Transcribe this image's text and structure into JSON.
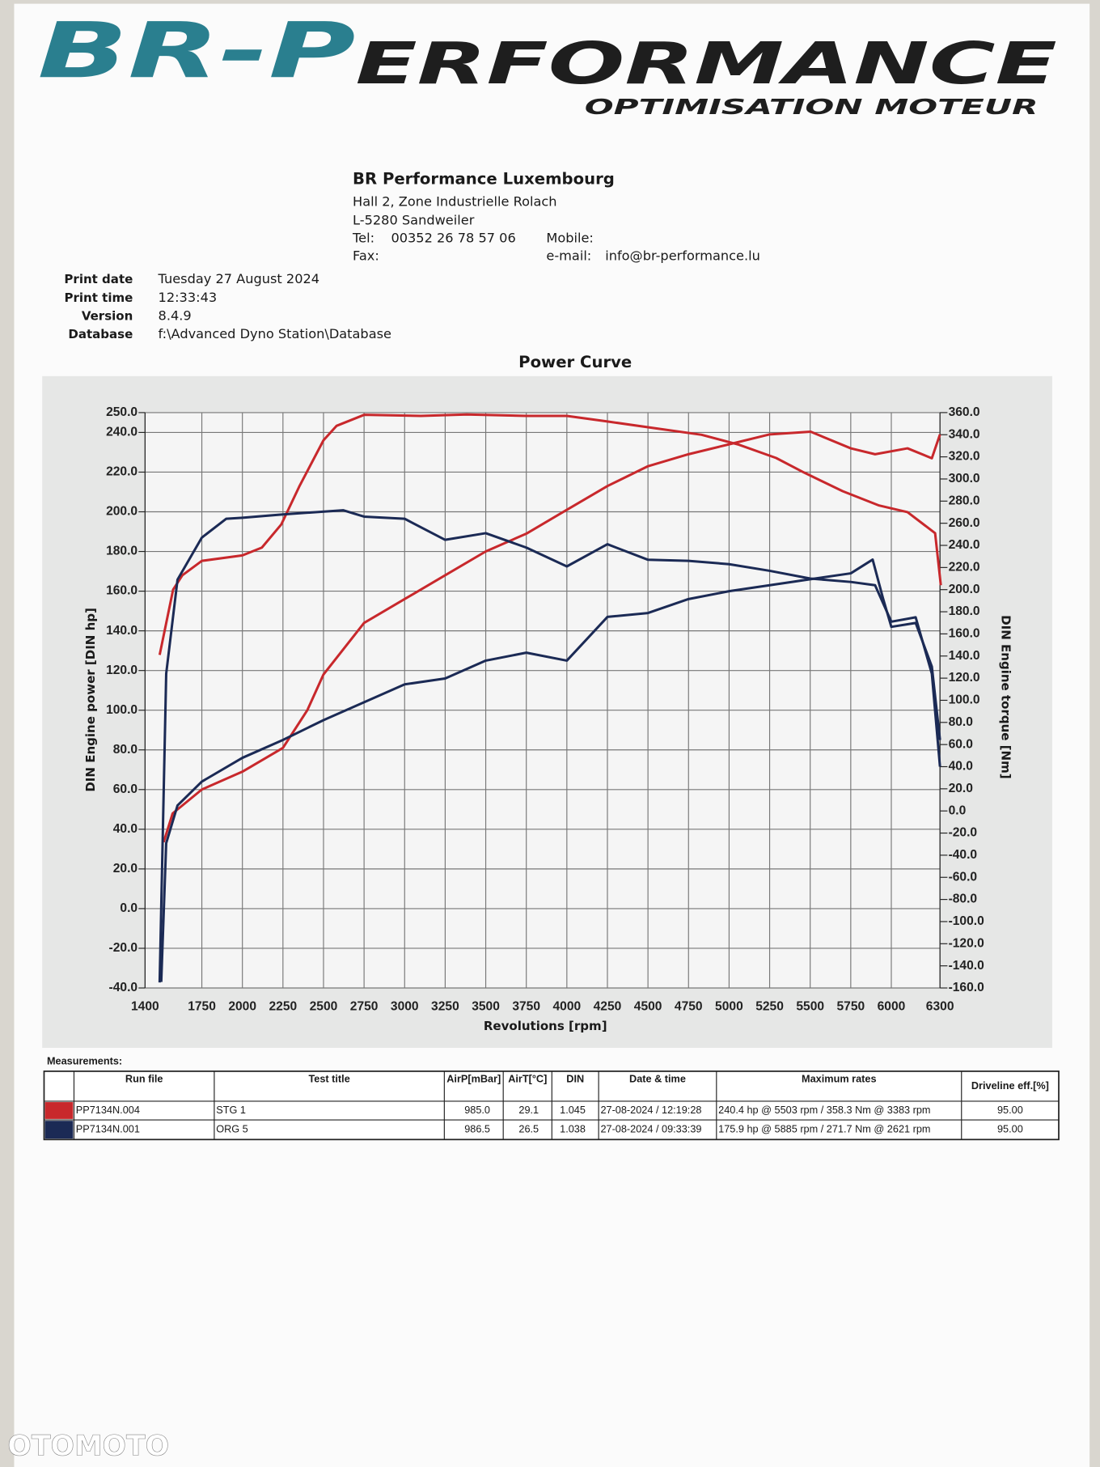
{
  "header": {
    "logo": [
      "BR-P",
      "ERFORMANCE"
    ],
    "slogan": "OPTIMISATION MOTEUR",
    "company": "BR Performance Luxembourg",
    "address": [
      "Hall 2, Zone Industrielle Rolach",
      "L-5280 Sandweiler"
    ],
    "tel_label": "Tel:",
    "tel": "00352 26 78 57 06",
    "fax_label": "Fax:",
    "mobile_label": "Mobile:",
    "email_label": "e-mail:",
    "email": "info@br-performance.lu"
  },
  "meta": [
    {
      "label": "Print date",
      "value": "Tuesday 27 August 2024"
    },
    {
      "label": "Print time",
      "value": "12:33:43"
    },
    {
      "label": "Version",
      "value": "8.4.9"
    },
    {
      "label": "Database",
      "value": "f:\\Advanced Dyno Station\\Database"
    }
  ],
  "chart_data": {
    "type": "line",
    "title": "Power Curve",
    "x_label": "Revolutions [rpm]",
    "y_label": "DIN Engine power [DIN hp]",
    "y2_label": "DIN Engine torque [Nm]",
    "xlim": [
      1400,
      6300
    ],
    "xticks": [
      1400,
      1750,
      2000,
      2250,
      2500,
      2750,
      3000,
      3250,
      3500,
      3750,
      4000,
      4250,
      4500,
      4750,
      5000,
      5250,
      5500,
      5750,
      6000,
      6300
    ],
    "ylim": [
      -40,
      250
    ],
    "yticks": [
      {
        "value": 250,
        "label": "250.0"
      },
      {
        "value": 240,
        "label": "240.0"
      },
      {
        "value": 220,
        "label": "220.0"
      },
      {
        "value": 200,
        "label": "200.0"
      },
      {
        "value": 180,
        "label": "180.0"
      },
      {
        "value": 160,
        "label": "160.0"
      },
      {
        "value": 140,
        "label": "140.0"
      },
      {
        "value": 120,
        "label": "120.0"
      },
      {
        "value": 100,
        "label": "100.0"
      },
      {
        "value": 80,
        "label": "80.0"
      },
      {
        "value": 60,
        "label": "60.0"
      },
      {
        "value": 40,
        "label": "40.0"
      },
      {
        "value": 20,
        "label": "20.0"
      },
      {
        "value": 0,
        "label": "0.0"
      },
      {
        "value": -20,
        "label": "-20.0"
      },
      {
        "value": -40,
        "label": "-40.0"
      }
    ],
    "y2lim": [
      -160,
      360
    ],
    "y2ticks": [
      {
        "value": 360,
        "label": "360.0"
      },
      {
        "value": 340,
        "label": "340.0"
      },
      {
        "value": 320,
        "label": "320.0"
      },
      {
        "value": 300,
        "label": "300.0"
      },
      {
        "value": 280,
        "label": "280.0"
      },
      {
        "value": 260,
        "label": "260.0"
      },
      {
        "value": 240,
        "label": "240.0"
      },
      {
        "value": 220,
        "label": "220.0"
      },
      {
        "value": 200,
        "label": "200.0"
      },
      {
        "value": 180,
        "label": "180.0"
      },
      {
        "value": 160,
        "label": "160.0"
      },
      {
        "value": 140,
        "label": "140.0"
      },
      {
        "value": 120,
        "label": "120.0"
      },
      {
        "value": 100,
        "label": "100.0"
      },
      {
        "value": 80,
        "label": "80.0"
      },
      {
        "value": 60,
        "label": "60.0"
      },
      {
        "value": 40,
        "label": "40.0"
      },
      {
        "value": 20,
        "label": "20.0"
      },
      {
        "value": 0,
        "label": "0.0"
      },
      {
        "value": -20,
        "label": "-20.0"
      },
      {
        "value": -40,
        "label": "-40.0"
      },
      {
        "value": -60,
        "label": "-60.0"
      },
      {
        "value": -80,
        "label": "-80.0"
      },
      {
        "value": -100,
        "label": "-100.0"
      },
      {
        "value": -120,
        "label": "-120.0"
      },
      {
        "value": -140,
        "label": "-140.0"
      },
      {
        "value": -160,
        "label": "-160.0"
      }
    ],
    "grid": true,
    "series": [
      {
        "color": "#c8282c",
        "axis": "y",
        "x": [
          1515,
          1570,
          1750,
          2000,
          2250,
          2400,
          2500,
          2750,
          3000,
          3250,
          3500,
          3750,
          4000,
          4250,
          4500,
          4750,
          5000,
          5250,
          5503,
          5750,
          5900,
          6100,
          6250,
          6300
        ],
        "values": [
          33.5,
          48,
          60,
          69,
          81,
          100,
          118,
          144,
          156,
          168,
          180,
          189,
          201,
          213,
          223,
          229,
          234,
          239,
          240.4,
          232,
          229,
          232,
          227,
          239
        ]
      },
      {
        "color": "#c8282c",
        "axis": "y2",
        "x": [
          1490,
          1573,
          1630,
          1750,
          2000,
          2120,
          2240,
          2350,
          2500,
          2580,
          2750,
          3100,
          3383,
          3750,
          4000,
          4250,
          4540,
          4830,
          5060,
          5290,
          5460,
          5700,
          5925,
          6100,
          6270,
          6305
        ],
        "values": [
          141,
          200,
          213,
          226,
          231,
          238,
          259,
          293,
          335,
          348,
          358,
          357,
          358.3,
          357,
          357,
          352,
          346,
          340,
          331,
          319,
          306,
          289,
          276,
          270,
          251,
          204
        ]
      },
      {
        "color": "#1b2a55",
        "axis": "y",
        "x": [
          1500,
          1530,
          1600,
          1750,
          2000,
          2250,
          2500,
          2750,
          3000,
          3250,
          3500,
          3750,
          4000,
          4250,
          4500,
          4750,
          5000,
          5250,
          5500,
          5750,
          5885,
          5950,
          6000,
          6150,
          6250,
          6300
        ],
        "values": [
          -37,
          33,
          52,
          64,
          76,
          85,
          95,
          104,
          113,
          116,
          125,
          129,
          125,
          147,
          149,
          156,
          160,
          163,
          166,
          169,
          175.9,
          156,
          142,
          144,
          122,
          85
        ]
      },
      {
        "color": "#1b2a55",
        "axis": "y2",
        "x": [
          1490,
          1530,
          1600,
          1750,
          1900,
          2000,
          2250,
          2621,
          2750,
          3000,
          3250,
          3500,
          3750,
          4000,
          4250,
          4500,
          4750,
          5000,
          5250,
          5500,
          5750,
          5900,
          6000,
          6150,
          6250,
          6300
        ],
        "values": [
          -155,
          124,
          209,
          247,
          264,
          265,
          268,
          271.7,
          266,
          264,
          245,
          251,
          238,
          221,
          241,
          227,
          226,
          223,
          217,
          210,
          207,
          204,
          171,
          175,
          124,
          40
        ]
      }
    ]
  },
  "table": {
    "title": "Measurements:",
    "columns": [
      "Run file",
      "Test title",
      "AirP[mBar]",
      "AirT[°C]",
      "DIN",
      "Date & time",
      "Maximum rates",
      "Driveline eff.[%]"
    ],
    "rows": [
      {
        "color": "#c8282c",
        "cells": [
          "PP7134N.004",
          "STG 1",
          "985.0",
          "29.1",
          "1.045",
          "27-08-2024 / 12:19:28",
          "240.4 hp @ 5503 rpm / 358.3 Nm @ 3383 rpm",
          "95.00"
        ]
      },
      {
        "color": "#1b2a55",
        "cells": [
          "PP7134N.001",
          "ORG 5",
          "986.5",
          "26.5",
          "1.038",
          "27-08-2024 / 09:33:39",
          "175.9 hp @ 5885 rpm / 271.7 Nm @ 2621 rpm",
          "95.00"
        ]
      }
    ]
  },
  "watermark": "OTOMOTO"
}
